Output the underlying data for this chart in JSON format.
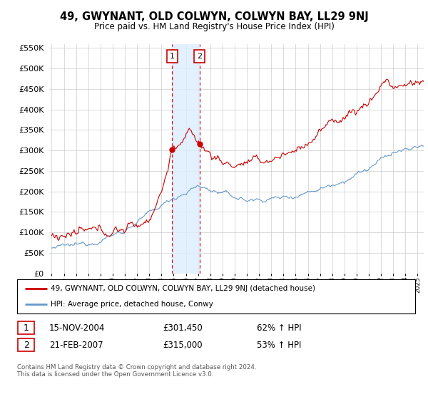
{
  "title": "49, GWYNANT, OLD COLWYN, COLWYN BAY, LL29 9NJ",
  "subtitle": "Price paid vs. HM Land Registry's House Price Index (HPI)",
  "legend_line1": "49, GWYNANT, OLD COLWYN, COLWYN BAY, LL29 9NJ (detached house)",
  "legend_line2": "HPI: Average price, detached house, Conwy",
  "transaction1_date": "15-NOV-2004",
  "transaction1_price": "£301,450",
  "transaction1_hpi": "62% ↑ HPI",
  "transaction2_date": "21-FEB-2007",
  "transaction2_price": "£315,000",
  "transaction2_hpi": "53% ↑ HPI",
  "footer": "Contains HM Land Registry data © Crown copyright and database right 2024.\nThis data is licensed under the Open Government Licence v3.0.",
  "hpi_color": "#6699cc",
  "price_color": "#cc0000",
  "shading_color": "#ddeeff",
  "transaction1_x": 2004.88,
  "transaction2_x": 2007.13,
  "ylim_min": 0,
  "ylim_max": 560000,
  "xlim_min": 1994.8,
  "xlim_max": 2025.5
}
